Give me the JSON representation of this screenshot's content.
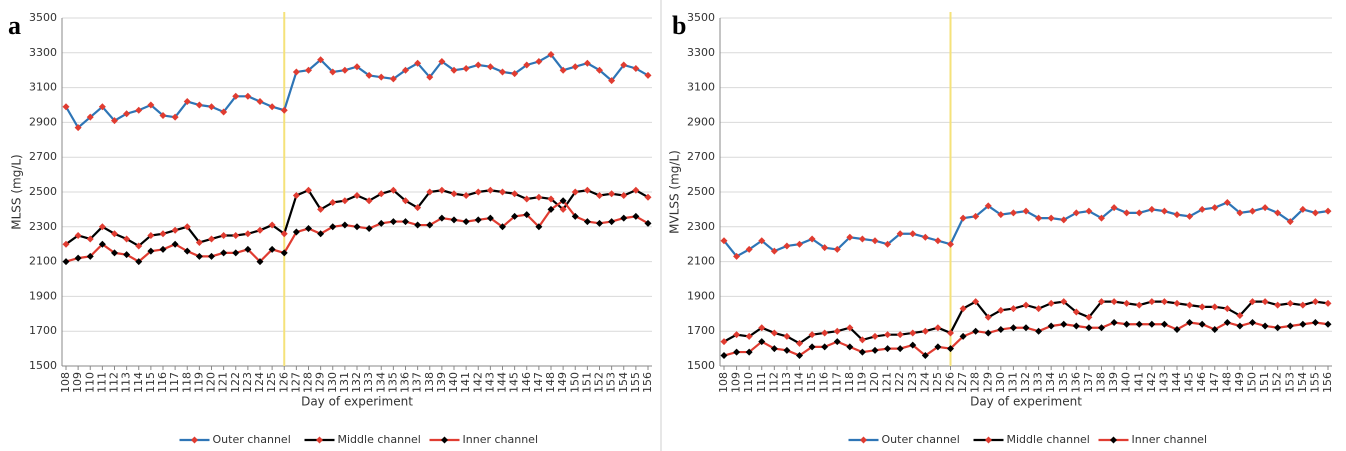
{
  "chart_data": [
    {
      "type": "line",
      "label": "a",
      "ylabel": "MLSS (mg/L)",
      "xlabel": "Day of experiment",
      "x": [
        108,
        109,
        110,
        111,
        112,
        113,
        114,
        115,
        116,
        117,
        118,
        119,
        120,
        121,
        122,
        123,
        124,
        125,
        126,
        127,
        128,
        129,
        130,
        131,
        132,
        133,
        134,
        135,
        136,
        137,
        138,
        139,
        140,
        141,
        142,
        143,
        144,
        145,
        146,
        147,
        148,
        149,
        150,
        151,
        152,
        153,
        154,
        155,
        156
      ],
      "xlim": [
        108,
        156
      ],
      "ylim": [
        1500,
        3500
      ],
      "yticks": [
        1500,
        1700,
        1900,
        2100,
        2300,
        2500,
        2700,
        2900,
        3100,
        3300,
        3500
      ],
      "grid": true,
      "event_x": 126,
      "event_color": "#f5e27a",
      "legend": "bottom",
      "series": [
        {
          "name": "Outer channel",
          "color": "#2e75b6",
          "marker_color": "#e03c31",
          "values": [
            2990,
            2870,
            2930,
            2990,
            2910,
            2950,
            2970,
            3000,
            2940,
            2930,
            3020,
            3000,
            2990,
            2960,
            3050,
            3050,
            3020,
            2990,
            2970,
            3190,
            3200,
            3260,
            3190,
            3200,
            3220,
            3170,
            3160,
            3150,
            3200,
            3240,
            3160,
            3250,
            3200,
            3210,
            3230,
            3220,
            3190,
            3180,
            3230,
            3250,
            3290,
            3200,
            3220,
            3240,
            3200,
            3140,
            3230,
            3210,
            3170
          ]
        },
        {
          "name": "Middle channel",
          "color": "#000000",
          "marker_color": "#e03c31",
          "values": [
            2200,
            2250,
            2230,
            2300,
            2260,
            2230,
            2190,
            2250,
            2260,
            2280,
            2300,
            2210,
            2230,
            2250,
            2250,
            2260,
            2280,
            2310,
            2260,
            2480,
            2510,
            2400,
            2440,
            2450,
            2480,
            2450,
            2490,
            2510,
            2450,
            2410,
            2500,
            2510,
            2490,
            2480,
            2500,
            2510,
            2500,
            2490,
            2460,
            2470,
            2460,
            2400,
            2500,
            2510,
            2480,
            2490,
            2480,
            2510,
            2470
          ]
        },
        {
          "name": "Inner channel",
          "color": "#e03c31",
          "marker_color": "#000000",
          "values": [
            2100,
            2120,
            2130,
            2200,
            2150,
            2140,
            2100,
            2160,
            2170,
            2200,
            2160,
            2130,
            2130,
            2150,
            2150,
            2170,
            2100,
            2170,
            2150,
            2270,
            2290,
            2260,
            2300,
            2310,
            2300,
            2290,
            2320,
            2330,
            2330,
            2310,
            2310,
            2350,
            2340,
            2330,
            2340,
            2350,
            2300,
            2360,
            2370,
            2300,
            2400,
            2450,
            2360,
            2330,
            2320,
            2330,
            2350,
            2360,
            2320
          ]
        }
      ]
    },
    {
      "type": "line",
      "label": "b",
      "ylabel": "MVLSS (mg/L)",
      "xlabel": "Day of experiment",
      "x": [
        108,
        109,
        110,
        111,
        112,
        113,
        114,
        115,
        116,
        117,
        118,
        119,
        120,
        121,
        122,
        123,
        124,
        125,
        126,
        127,
        128,
        129,
        130,
        131,
        132,
        133,
        134,
        135,
        136,
        137,
        138,
        139,
        140,
        141,
        142,
        143,
        144,
        145,
        146,
        147,
        148,
        149,
        150,
        151,
        152,
        153,
        154,
        155,
        156
      ],
      "xlim": [
        108,
        156
      ],
      "ylim": [
        1500,
        3500
      ],
      "yticks": [
        1500,
        1700,
        1900,
        2100,
        2300,
        2500,
        2700,
        2900,
        3100,
        3300,
        3500
      ],
      "grid": true,
      "event_x": 126,
      "event_color": "#f5e27a",
      "legend": "bottom",
      "series": [
        {
          "name": "Outer channel",
          "color": "#2e75b6",
          "marker_color": "#e03c31",
          "values": [
            2220,
            2130,
            2170,
            2220,
            2160,
            2190,
            2200,
            2230,
            2180,
            2170,
            2240,
            2230,
            2220,
            2200,
            2260,
            2260,
            2240,
            2220,
            2200,
            2350,
            2360,
            2420,
            2370,
            2380,
            2390,
            2350,
            2350,
            2340,
            2380,
            2390,
            2350,
            2410,
            2380,
            2380,
            2400,
            2390,
            2370,
            2360,
            2400,
            2410,
            2440,
            2380,
            2390,
            2410,
            2380,
            2330,
            2400,
            2380,
            2390
          ]
        },
        {
          "name": "Middle channel",
          "color": "#000000",
          "marker_color": "#e03c31",
          "values": [
            1640,
            1680,
            1670,
            1720,
            1690,
            1670,
            1630,
            1680,
            1690,
            1700,
            1720,
            1650,
            1670,
            1680,
            1680,
            1690,
            1700,
            1720,
            1690,
            1830,
            1870,
            1780,
            1820,
            1830,
            1850,
            1830,
            1860,
            1870,
            1810,
            1780,
            1870,
            1870,
            1860,
            1850,
            1870,
            1870,
            1860,
            1850,
            1840,
            1840,
            1830,
            1790,
            1870,
            1870,
            1850,
            1860,
            1850,
            1870,
            1860
          ]
        },
        {
          "name": "Inner channel",
          "color": "#e03c31",
          "marker_color": "#000000",
          "values": [
            1560,
            1580,
            1580,
            1640,
            1600,
            1590,
            1560,
            1610,
            1610,
            1640,
            1610,
            1580,
            1590,
            1600,
            1600,
            1620,
            1560,
            1610,
            1600,
            1670,
            1700,
            1690,
            1710,
            1720,
            1720,
            1700,
            1730,
            1740,
            1730,
            1720,
            1720,
            1750,
            1740,
            1740,
            1740,
            1740,
            1710,
            1750,
            1740,
            1710,
            1750,
            1730,
            1750,
            1730,
            1720,
            1730,
            1740,
            1750,
            1740
          ]
        }
      ]
    }
  ]
}
